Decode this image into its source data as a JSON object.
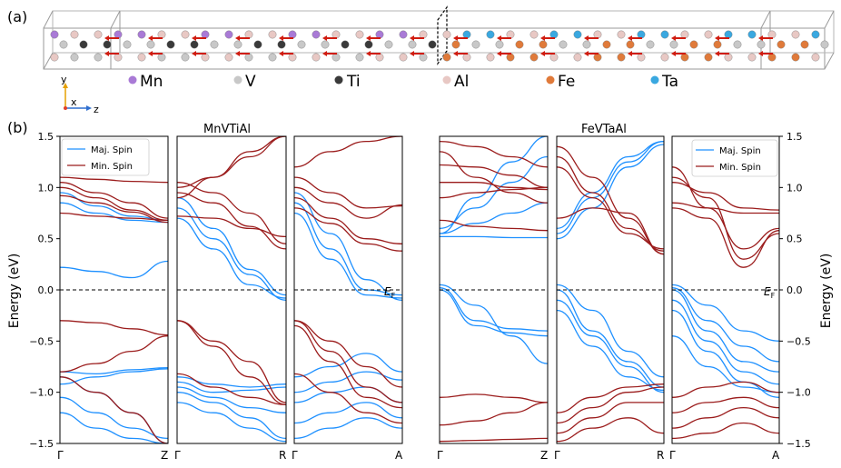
{
  "panel_a": {
    "label": "(a)",
    "axes": {
      "y": "y",
      "x": "x",
      "z": "z"
    },
    "legend": [
      {
        "symbol": "Mn",
        "color": "#a97ad6"
      },
      {
        "symbol": "V",
        "color": "#c8c8c8"
      },
      {
        "symbol": "Ti",
        "color": "#3a3a3a"
      },
      {
        "symbol": "Al",
        "color": "#e8c8c4"
      },
      {
        "symbol": "Fe",
        "color": "#e07a3a"
      },
      {
        "symbol": "Ta",
        "color": "#3aa8e0"
      }
    ]
  },
  "panel_b": {
    "label": "(b)",
    "left_title": "MnVTiAl",
    "right_title": "FeVTaAl",
    "ylabel": "Energy (eV)",
    "yticks": [
      "1.5",
      "1.0",
      "0.5",
      "0.0",
      "−0.5",
      "−1.0",
      "−1.5"
    ],
    "fermi_label_main": "E",
    "fermi_label_sub": "F",
    "legend": {
      "maj": "Maj. Spin",
      "min": "Min. Spin"
    },
    "colors": {
      "maj": "#1e90ff",
      "min": "#9b1c1c"
    },
    "subplots": [
      {
        "group": "MnVTiAl",
        "start": "Γ",
        "end": "Z"
      },
      {
        "group": "MnVTiAl",
        "start": "Γ",
        "end": "R"
      },
      {
        "group": "MnVTiAl",
        "start": "Γ",
        "end": "A"
      },
      {
        "group": "FeVTaAl",
        "start": "Γ",
        "end": "Z"
      },
      {
        "group": "FeVTaAl",
        "start": "Γ",
        "end": "R"
      },
      {
        "group": "FeVTaAl",
        "start": "Γ",
        "end": "A"
      }
    ]
  },
  "chart_data": [
    {
      "type": "line",
      "title": "MnVTiAl",
      "xlabel": "Γ–Z",
      "ylabel": "Energy (eV)",
      "ylim": [
        -1.5,
        1.5
      ],
      "series": [
        {
          "name": "Maj. Spin",
          "spin": "maj",
          "bands": [
            [
              0.85,
              0.75,
              0.68,
              0.66
            ],
            [
              0.95,
              0.82,
              0.72,
              0.68
            ],
            [
              0.22,
              0.18,
              0.12,
              0.28
            ],
            [
              -0.92,
              -0.85,
              -0.8,
              -0.77
            ],
            [
              -0.85,
              -1.0,
              -1.2,
              -1.5
            ],
            [
              -1.05,
              -1.2,
              -1.35,
              -1.45
            ],
            [
              -1.2,
              -1.35,
              -1.45,
              -1.5
            ],
            [
              -0.8,
              -0.82,
              -0.78,
              -0.76
            ]
          ]
        },
        {
          "name": "Min. Spin",
          "spin": "min",
          "bands": [
            [
              1.1,
              1.08,
              1.06,
              1.05
            ],
            [
              1.05,
              0.95,
              0.85,
              0.7
            ],
            [
              1.0,
              0.9,
              0.78,
              0.68
            ],
            [
              0.75,
              0.72,
              0.7,
              0.68
            ],
            [
              0.92,
              0.85,
              0.76,
              0.66
            ],
            [
              -0.3,
              -0.32,
              -0.38,
              -0.44
            ],
            [
              -0.8,
              -0.72,
              -0.6,
              -0.45
            ],
            [
              -0.85,
              -1.0,
              -1.2,
              -1.5
            ]
          ]
        }
      ]
    },
    {
      "type": "line",
      "title": "MnVTiAl",
      "xlabel": "Γ–R",
      "ylabel": "Energy (eV)",
      "ylim": [
        -1.5,
        1.5
      ],
      "series": [
        {
          "name": "Maj. Spin",
          "spin": "maj",
          "bands": [
            [
              0.8,
              0.5,
              0.15,
              -0.1
            ],
            [
              0.7,
              0.4,
              0.05,
              -0.08
            ],
            [
              0.9,
              0.6,
              0.2,
              -0.05
            ],
            [
              -0.85,
              -0.92,
              -0.95,
              -0.92
            ],
            [
              -0.9,
              -1.0,
              -0.98,
              -0.95
            ],
            [
              -1.0,
              -1.1,
              -1.25,
              -1.45
            ],
            [
              -1.1,
              -1.2,
              -1.35,
              -1.48
            ],
            [
              -0.95,
              -1.05,
              -1.15,
              -1.2
            ]
          ]
        },
        {
          "name": "Min. Spin",
          "spin": "min",
          "bands": [
            [
              1.05,
              0.95,
              0.75,
              0.45
            ],
            [
              0.95,
              0.85,
              0.62,
              0.4
            ],
            [
              0.72,
              0.7,
              0.6,
              0.52
            ],
            [
              1.0,
              1.1,
              1.3,
              1.5
            ],
            [
              0.9,
              1.1,
              1.35,
              1.5
            ],
            [
              -0.3,
              -0.55,
              -0.85,
              -1.12
            ],
            [
              -0.3,
              -0.5,
              -0.7,
              -1.1
            ],
            [
              -0.82,
              -0.95,
              -1.05,
              -1.12
            ]
          ]
        }
      ]
    },
    {
      "type": "line",
      "title": "MnVTiAl",
      "xlabel": "Γ–A",
      "ylabel": "Energy (eV)",
      "ylim": [
        -1.5,
        1.5
      ],
      "series": [
        {
          "name": "Maj. Spin",
          "spin": "maj",
          "bands": [
            [
              0.85,
              0.4,
              0.0,
              -0.05
            ],
            [
              0.95,
              0.55,
              0.1,
              -0.1
            ],
            [
              0.75,
              0.3,
              -0.05,
              -0.08
            ],
            [
              -0.85,
              -0.75,
              -0.62,
              -0.8
            ],
            [
              -1.0,
              -0.9,
              -0.8,
              -0.88
            ],
            [
              -1.1,
              -1.0,
              -0.95,
              -1.1
            ],
            [
              -1.3,
              -1.2,
              -1.1,
              -1.25
            ],
            [
              -1.45,
              -1.35,
              -1.25,
              -1.35
            ]
          ]
        },
        {
          "name": "Min. Spin",
          "spin": "min",
          "bands": [
            [
              1.0,
              0.85,
              0.7,
              0.83
            ],
            [
              1.1,
              0.95,
              0.8,
              0.82
            ],
            [
              0.9,
              0.7,
              0.5,
              0.45
            ],
            [
              0.8,
              0.65,
              0.45,
              0.38
            ],
            [
              1.2,
              1.35,
              1.45,
              1.5
            ],
            [
              -0.3,
              -0.5,
              -0.75,
              -0.95
            ],
            [
              -0.3,
              -0.6,
              -0.95,
              -1.1
            ],
            [
              -0.35,
              -0.7,
              -1.05,
              -1.15
            ],
            [
              -0.82,
              -1.0,
              -1.2,
              -1.3
            ]
          ]
        }
      ]
    },
    {
      "type": "line",
      "title": "FeVTaAl",
      "xlabel": "Γ–Z",
      "ylabel": "Energy (eV)",
      "ylim": [
        -1.5,
        1.5
      ],
      "series": [
        {
          "name": "Maj. Spin",
          "spin": "maj",
          "bands": [
            [
              0.52,
              0.52,
              0.51,
              0.51
            ],
            [
              0.55,
              0.65,
              0.75,
              0.85
            ],
            [
              0.6,
              0.8,
              1.05,
              1.3
            ],
            [
              0.55,
              0.9,
              1.25,
              1.5
            ],
            [
              0.05,
              -0.15,
              -0.45,
              -0.72
            ],
            [
              0.02,
              -0.3,
              -0.38,
              -0.4
            ],
            [
              0.0,
              -0.35,
              -0.42,
              -0.45
            ]
          ]
        },
        {
          "name": "Min. Spin",
          "spin": "min",
          "bands": [
            [
              1.45,
              1.4,
              1.3,
              1.2
            ],
            [
              1.22,
              1.2,
              1.12,
              1.0
            ],
            [
              1.05,
              1.05,
              1.0,
              0.98
            ],
            [
              0.9,
              0.95,
              0.98,
              1.0
            ],
            [
              0.68,
              0.62,
              0.6,
              0.58
            ],
            [
              1.35,
              1.1,
              0.95,
              0.85
            ],
            [
              -1.05,
              -1.02,
              -1.05,
              -1.1
            ],
            [
              -1.32,
              -1.28,
              -1.2,
              -1.1
            ],
            [
              -1.48,
              -1.47,
              -1.46,
              -1.45
            ]
          ]
        }
      ]
    },
    {
      "type": "line",
      "title": "FeVTaAl",
      "xlabel": "Γ–R",
      "ylabel": "Energy (eV)",
      "ylim": [
        -1.5,
        1.5
      ],
      "series": [
        {
          "name": "Maj. Spin",
          "spin": "maj",
          "bands": [
            [
              0.5,
              0.8,
              1.2,
              1.42
            ],
            [
              0.55,
              0.9,
              1.25,
              1.45
            ],
            [
              0.6,
              0.95,
              1.3,
              1.45
            ],
            [
              0.05,
              -0.2,
              -0.6,
              -0.85
            ],
            [
              0.0,
              -0.4,
              -0.7,
              -0.95
            ],
            [
              -0.1,
              -0.45,
              -0.75,
              -1.0
            ],
            [
              -0.2,
              -0.55,
              -0.85,
              -0.98
            ]
          ]
        },
        {
          "name": "Min. Spin",
          "spin": "min",
          "bands": [
            [
              1.4,
              1.1,
              0.7,
              0.35
            ],
            [
              1.3,
              0.95,
              0.6,
              0.38
            ],
            [
              1.2,
              0.9,
              0.55,
              0.4
            ],
            [
              0.7,
              0.8,
              0.75,
              0.35
            ],
            [
              -1.2,
              -1.05,
              -0.95,
              -0.92
            ],
            [
              -1.3,
              -1.15,
              -1.0,
              -0.95
            ],
            [
              -1.4,
              -1.25,
              -1.1,
              -1.1
            ],
            [
              -1.48,
              -1.35,
              -1.25,
              -1.4
            ]
          ]
        }
      ]
    },
    {
      "type": "line",
      "title": "FeVTaAl",
      "xlabel": "Γ–A",
      "ylabel": "Energy (eV)",
      "ylim": [
        -1.5,
        1.5
      ],
      "series": [
        {
          "name": "Maj. Spin",
          "spin": "maj",
          "bands": [
            [
              0.05,
              -0.15,
              -0.4,
              -0.5
            ],
            [
              0.02,
              -0.3,
              -0.55,
              -0.7
            ],
            [
              0.0,
              -0.4,
              -0.7,
              -0.8
            ],
            [
              -0.1,
              -0.5,
              -0.8,
              -0.92
            ],
            [
              -0.2,
              -0.6,
              -0.9,
              -1.05
            ],
            [
              -0.45,
              -0.75,
              -0.95,
              -1.0
            ]
          ]
        },
        {
          "name": "Min. Spin",
          "spin": "min",
          "bands": [
            [
              1.2,
              0.8,
              0.4,
              0.6
            ],
            [
              1.1,
              0.9,
              0.3,
              0.55
            ],
            [
              1.05,
              0.95,
              0.8,
              0.78
            ],
            [
              0.85,
              0.8,
              0.75,
              0.75
            ],
            [
              0.8,
              0.7,
              0.22,
              0.58
            ],
            [
              -1.05,
              -0.95,
              -0.9,
              -1.0
            ],
            [
              -1.2,
              -1.1,
              -1.05,
              -1.15
            ],
            [
              -1.35,
              -1.25,
              -1.15,
              -1.25
            ],
            [
              -1.45,
              -1.4,
              -1.3,
              -1.4
            ]
          ]
        }
      ]
    }
  ]
}
